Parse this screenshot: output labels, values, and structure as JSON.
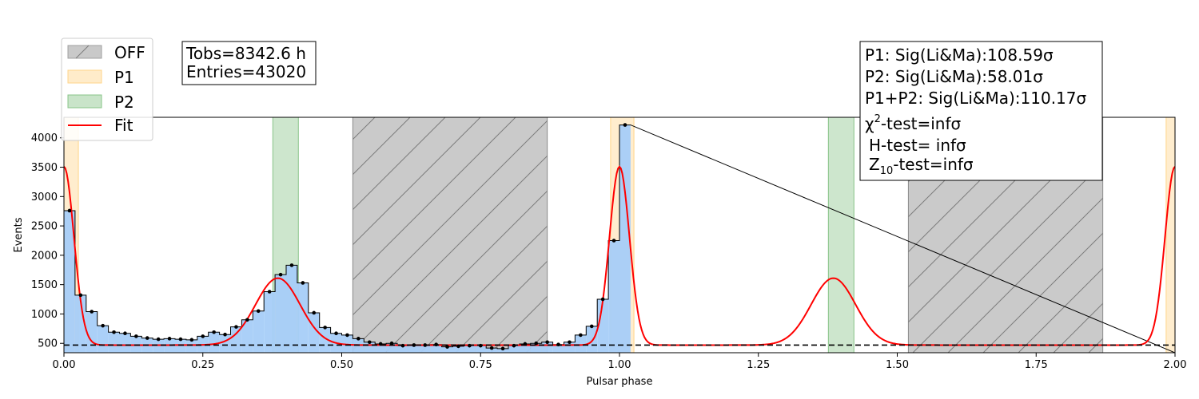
{
  "chart_data": {
    "type": "bar",
    "xlabel": "Pulsar phase",
    "ylabel": "Events",
    "xlim": [
      0,
      2
    ],
    "ylim": [
      340,
      4350
    ],
    "x_ticks": [
      "0.00",
      "0.25",
      "0.50",
      "0.75",
      "1.00",
      "1.25",
      "1.50",
      "1.75",
      "2.00"
    ],
    "y_ticks": [
      "500",
      "1000",
      "1500",
      "2000",
      "2500",
      "3000",
      "3500",
      "4000"
    ],
    "bin_width": 0.02,
    "counts": [
      2760,
      1320,
      1040,
      800,
      690,
      670,
      620,
      590,
      570,
      580,
      570,
      560,
      620,
      690,
      650,
      780,
      900,
      1050,
      1380,
      1670,
      1830,
      1530,
      1020,
      770,
      670,
      640,
      580,
      520,
      490,
      500,
      460,
      470,
      470,
      480,
      440,
      450,
      460,
      460,
      420,
      410,
      460,
      490,
      500,
      520,
      480,
      520,
      640,
      790,
      1250,
      2250,
      4220
    ],
    "background_level": 470,
    "regions": [
      {
        "name": "OFF",
        "ranges": [
          [
            0.52,
            0.87
          ],
          [
            1.52,
            1.87
          ]
        ],
        "color": "#a9a9a9"
      },
      {
        "name": "P1",
        "ranges": [
          [
            0.0,
            0.026
          ],
          [
            0.984,
            1.026
          ],
          [
            1.984,
            2.0
          ]
        ],
        "color": "#ffd58a"
      },
      {
        "name": "P2",
        "ranges": [
          [
            0.376,
            0.422
          ],
          [
            1.376,
            1.422
          ]
        ],
        "color": "#88c488"
      }
    ],
    "fit": {
      "name": "Fit",
      "color": "#ff0000",
      "baseline": 470,
      "peaks": [
        {
          "amplitude": 3040,
          "center": 0.0,
          "sigma": 0.018
        },
        {
          "amplitude": 1140,
          "center": 0.385,
          "sigma": 0.04
        }
      ]
    },
    "legend": {
      "placement": "top-left",
      "entries": [
        {
          "label": "OFF",
          "swatch": "off"
        },
        {
          "label": "P1",
          "swatch": "p1"
        },
        {
          "label": "P2",
          "swatch": "p2"
        },
        {
          "label": "Fit",
          "swatch": "fit"
        }
      ]
    },
    "info_box": {
      "line1": "Tobs=8342.6 h",
      "line2": "Entries=43020"
    },
    "stats_box": {
      "p1": "P1: Sig(Li&Ma):108.59σ",
      "p2": "P2: Sig(Li&Ma):58.01σ",
      "p12": "P1+P2: Sig(Li&Ma):110.17σ",
      "chi2_prefix": "χ",
      "chi2_sup": "2",
      "chi2_rest": "-test=infσ",
      "htest": "H-test= infσ",
      "z_prefix": "Z",
      "z_sub": "10",
      "z_rest": "-test=infσ"
    },
    "colors": {
      "fill": "#a6cef8",
      "outline": "#000000",
      "points": "#000000",
      "baseline": "#000000"
    }
  }
}
